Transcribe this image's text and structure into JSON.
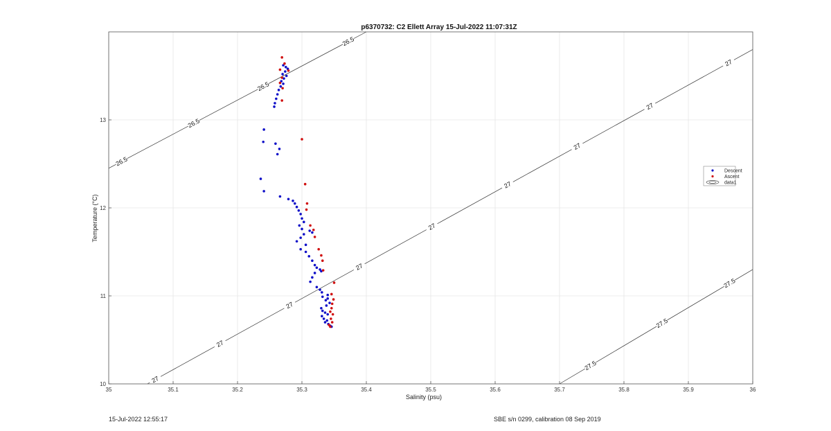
{
  "chart_data": {
    "type": "scatter",
    "title": "p6370732: C2 Ellett Array 15-Jul-2022 11:07:31Z",
    "xlabel": "Salinity (psu)",
    "ylabel": "Temperature (°C)",
    "xlim": [
      35,
      36
    ],
    "ylim": [
      10,
      14.0
    ],
    "xticks": [
      "35",
      "35.1",
      "35.2",
      "35.3",
      "35.4",
      "35.5",
      "35.6",
      "35.7",
      "35.8",
      "35.9",
      "36"
    ],
    "yticks": [
      "10",
      "11",
      "12",
      "13"
    ],
    "grid": true,
    "legend_position": "right",
    "legend": [
      "Descent",
      "Ascent",
      "data1"
    ],
    "series": [
      {
        "name": "Descent",
        "color": "#1010c8",
        "points": [
          [
            35.271,
            13.62
          ],
          [
            35.275,
            13.6
          ],
          [
            35.278,
            13.58
          ],
          [
            35.274,
            13.55
          ],
          [
            35.27,
            13.52
          ],
          [
            35.276,
            13.5
          ],
          [
            35.272,
            13.47
          ],
          [
            35.268,
            13.44
          ],
          [
            35.271,
            13.41
          ],
          [
            35.267,
            13.38
          ],
          [
            35.264,
            13.34
          ],
          [
            35.262,
            13.29
          ],
          [
            35.26,
            13.24
          ],
          [
            35.258,
            13.19
          ],
          [
            35.257,
            13.15
          ],
          [
            35.241,
            12.89
          ],
          [
            35.24,
            12.75
          ],
          [
            35.259,
            12.73
          ],
          [
            35.265,
            12.67
          ],
          [
            35.262,
            12.61
          ],
          [
            35.236,
            12.33
          ],
          [
            35.241,
            12.19
          ],
          [
            35.266,
            12.13
          ],
          [
            35.279,
            12.1
          ],
          [
            35.286,
            12.08
          ],
          [
            35.289,
            12.05
          ],
          [
            35.292,
            12.01
          ],
          [
            35.295,
            11.97
          ],
          [
            35.298,
            11.93
          ],
          [
            35.3,
            11.88
          ],
          [
            35.303,
            11.84
          ],
          [
            35.296,
            11.8
          ],
          [
            35.3,
            11.76
          ],
          [
            35.312,
            11.74
          ],
          [
            35.316,
            11.72
          ],
          [
            35.303,
            11.7
          ],
          [
            35.298,
            11.66
          ],
          [
            35.292,
            11.62
          ],
          [
            35.306,
            11.58
          ],
          [
            35.298,
            11.53
          ],
          [
            35.306,
            11.5
          ],
          [
            35.311,
            11.45
          ],
          [
            35.316,
            11.4
          ],
          [
            35.32,
            11.35
          ],
          [
            35.323,
            11.32
          ],
          [
            35.328,
            11.3
          ],
          [
            35.33,
            11.28
          ],
          [
            35.32,
            11.26
          ],
          [
            35.316,
            11.21
          ],
          [
            35.313,
            11.16
          ],
          [
            35.323,
            11.1
          ],
          [
            35.328,
            11.07
          ],
          [
            35.331,
            11.04
          ],
          [
            35.34,
            11.01
          ],
          [
            35.332,
            10.99
          ],
          [
            35.34,
            10.97
          ],
          [
            35.337,
            10.95
          ],
          [
            35.343,
            10.92
          ],
          [
            35.338,
            10.89
          ],
          [
            35.33,
            10.86
          ],
          [
            35.332,
            10.83
          ],
          [
            35.336,
            10.81
          ],
          [
            35.34,
            10.79
          ],
          [
            35.331,
            10.77
          ],
          [
            35.334,
            10.74
          ],
          [
            35.339,
            10.72
          ],
          [
            35.336,
            10.7
          ],
          [
            35.341,
            10.68
          ],
          [
            35.344,
            10.66
          ],
          [
            35.346,
            10.65
          ]
        ]
      },
      {
        "name": "Ascent",
        "color": "#d01010",
        "points": [
          [
            35.269,
            13.71
          ],
          [
            35.273,
            13.64
          ],
          [
            35.266,
            13.57
          ],
          [
            35.279,
            13.56
          ],
          [
            35.269,
            13.48
          ],
          [
            35.266,
            13.42
          ],
          [
            35.27,
            13.36
          ],
          [
            35.269,
            13.22
          ],
          [
            35.3,
            12.78
          ],
          [
            35.305,
            12.27
          ],
          [
            35.308,
            12.05
          ],
          [
            35.307,
            11.98
          ],
          [
            35.313,
            11.8
          ],
          [
            35.318,
            11.75
          ],
          [
            35.32,
            11.67
          ],
          [
            35.326,
            11.53
          ],
          [
            35.33,
            11.46
          ],
          [
            35.332,
            11.4
          ],
          [
            35.333,
            11.29
          ],
          [
            35.35,
            11.15
          ],
          [
            35.346,
            11.02
          ],
          [
            35.349,
            10.96
          ],
          [
            35.347,
            10.91
          ],
          [
            35.346,
            10.86
          ],
          [
            35.344,
            10.82
          ],
          [
            35.348,
            10.79
          ],
          [
            35.345,
            10.74
          ],
          [
            35.347,
            10.7
          ],
          [
            35.342,
            10.67
          ],
          [
            35.344,
            10.65
          ]
        ]
      }
    ],
    "contour_labels": [
      "26.5",
      "26.5",
      "26.5",
      "26.5",
      "27",
      "27",
      "27",
      "27",
      "27",
      "27",
      "27",
      "27",
      "27",
      "27.5",
      "27.5",
      "27.5"
    ]
  },
  "footer": {
    "left": "15-Jul-2022 12:55:17",
    "right": "SBE s/n 0299, calibration 08 Sep 2019"
  }
}
